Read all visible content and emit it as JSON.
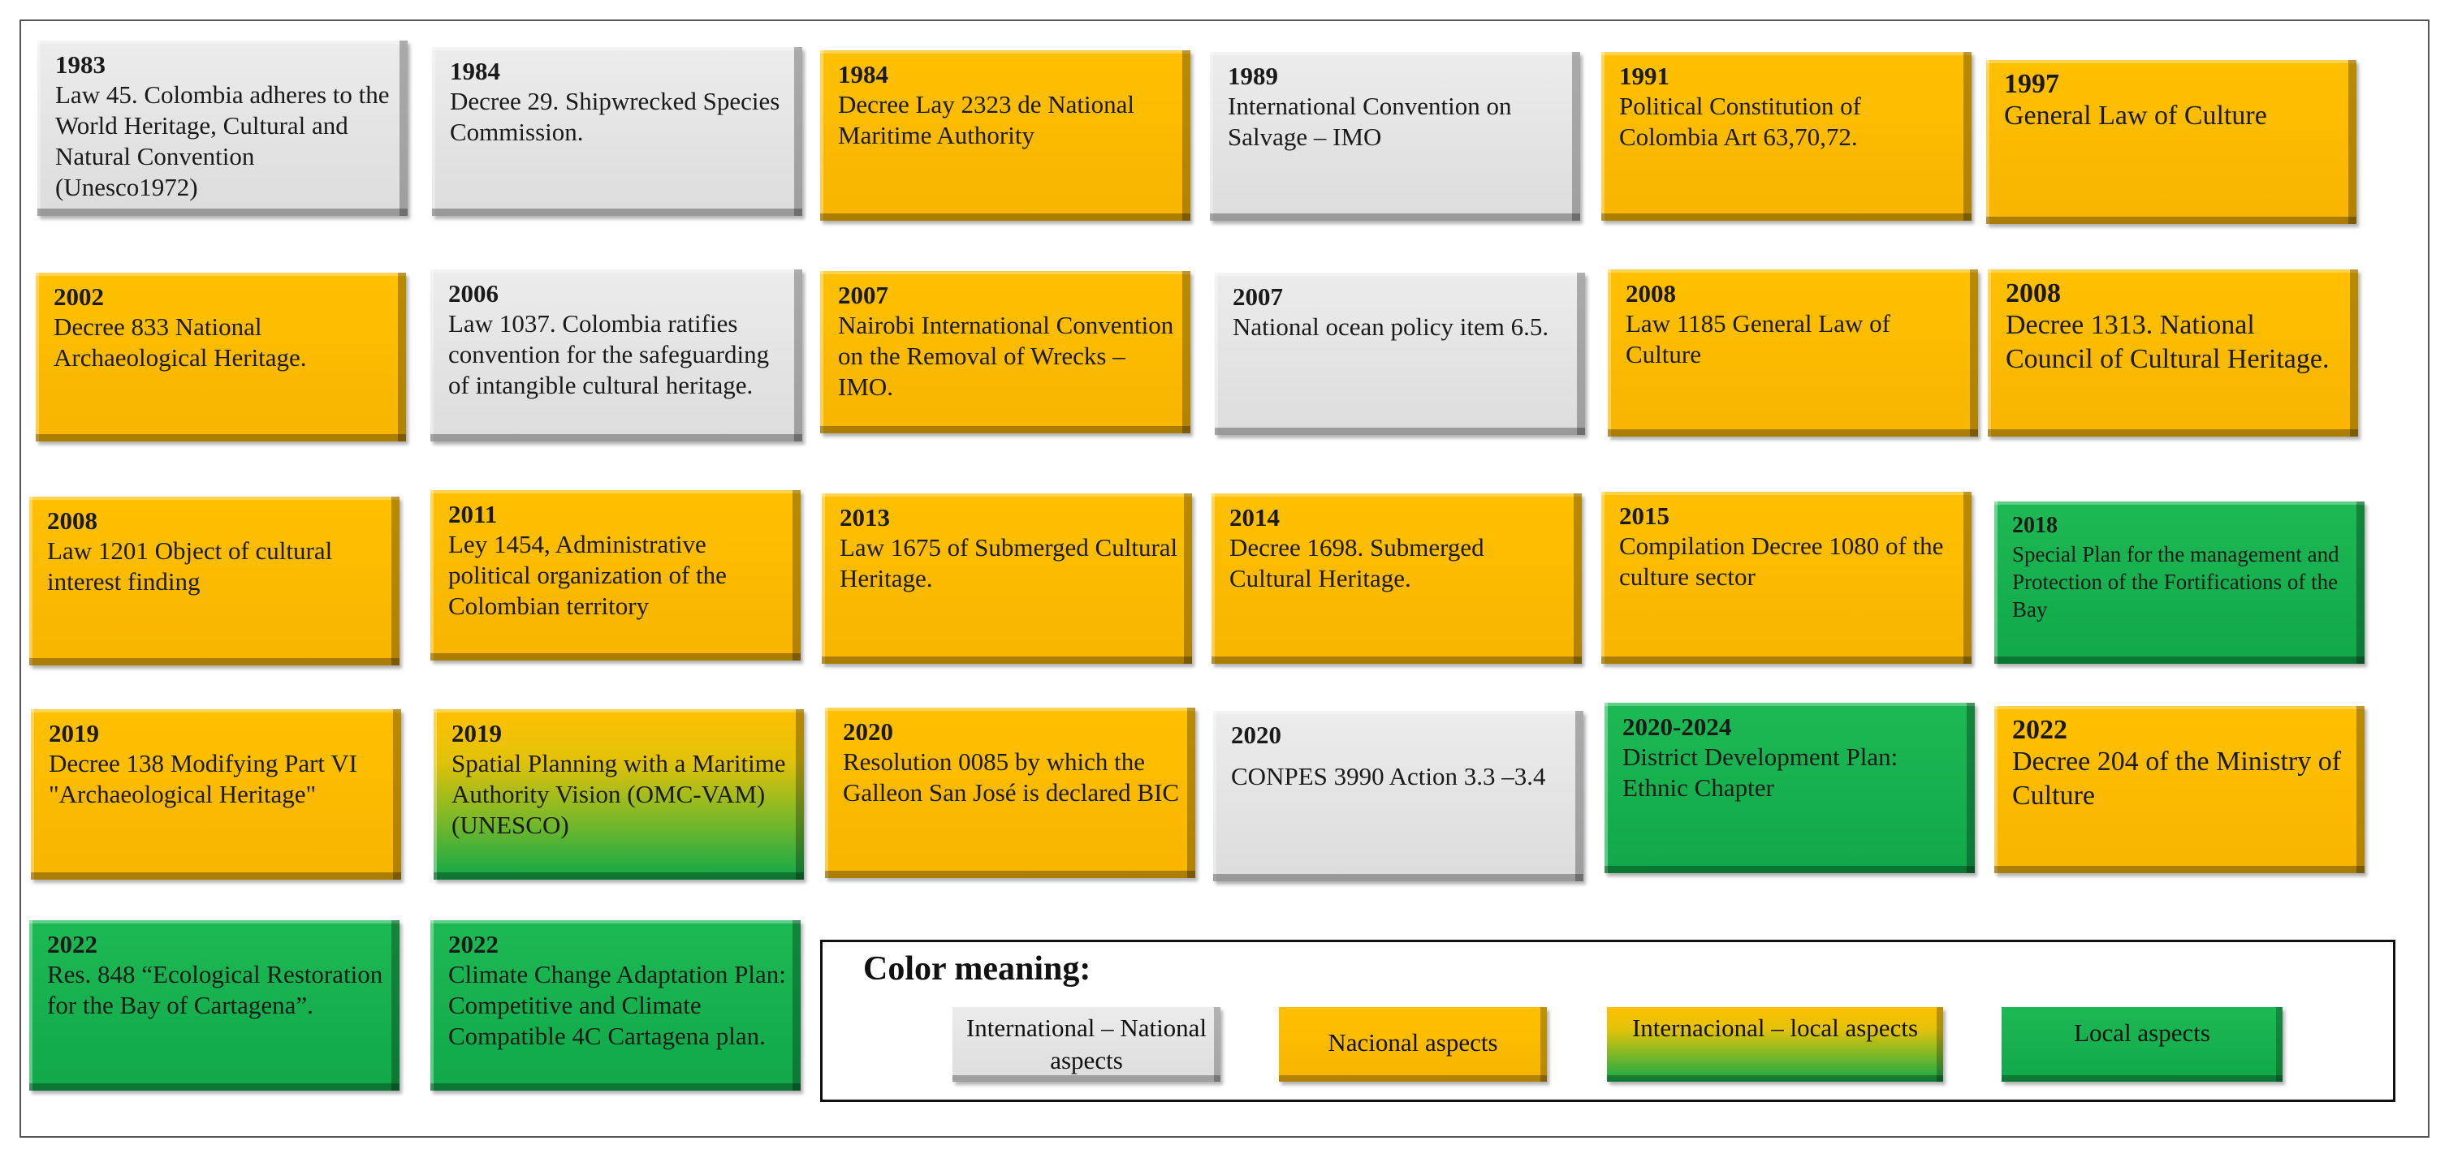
{
  "colors": {
    "international_national": "#e6e6e6",
    "national": "#ffc000",
    "international_local": "gradient #ffc000 to #10a849",
    "local": "#10a849"
  },
  "cards": [
    {
      "id": "c1983",
      "year": "1983",
      "text": "Law 45. Colombia adheres to the World Heritage, Cultural and Natural Convention (Unesco1972)",
      "color": "grey"
    },
    {
      "id": "c1984a",
      "year": "1984",
      "text": "Decree 29. Shipwrecked Species Commission.",
      "color": "grey"
    },
    {
      "id": "c1984b",
      "year": "1984",
      "text": "Decree Lay   2323 de National Maritime Authority",
      "color": "orange"
    },
    {
      "id": "c1989",
      "year": "1989",
      "text": "International Convention on Salvage – IMO",
      "color": "grey"
    },
    {
      "id": "c1991",
      "year": "1991",
      "text": "Political Constitution of Colombia Art 63,70,72.",
      "color": "orange"
    },
    {
      "id": "c1997",
      "year": "1997",
      "text": "General Law of Culture",
      "color": "orange"
    },
    {
      "id": "c2002",
      "year": "2002",
      "text": "Decree 833 National Archaeological Heritage.",
      "color": "orange"
    },
    {
      "id": "c2006",
      "year": "2006",
      "text": "Law 1037. Colombia ratifies convention for the safeguarding of intangible cultural heritage.",
      "color": "grey"
    },
    {
      "id": "c2007a",
      "year": "2007",
      "text": "Nairobi International Convention on the Removal of Wrecks – IMO.",
      "color": "orange"
    },
    {
      "id": "c2007b",
      "year": "2007",
      "text": "National ocean policy  item 6.5.",
      "color": "grey"
    },
    {
      "id": "c2008a",
      "year": "2008",
      "text": "Law 1185 General Law of Culture",
      "color": "orange"
    },
    {
      "id": "c2008b",
      "year": "2008",
      "text": "Decree 1313. National Council of Cultural Heritage.",
      "color": "orange"
    },
    {
      "id": "c2008c",
      "year": "2008",
      "text": "Law 1201  Object of cultural interest finding",
      "color": "orange"
    },
    {
      "id": "c2011",
      "year": "2011",
      "text": "Ley 1454, Administrative political organization of the Colombian territory",
      "color": "orange"
    },
    {
      "id": "c2013",
      "year": "2013",
      "text": "Law 1675 of Submerged Cultural Heritage.",
      "color": "orange"
    },
    {
      "id": "c2014",
      "year": "2014",
      "text": "Decree 1698. Submerged Cultural Heritage.",
      "color": "orange"
    },
    {
      "id": "c2015",
      "year": "2015",
      "text": "Compilation Decree 1080 of the culture sector",
      "color": "orange"
    },
    {
      "id": "c2018",
      "year": "2018",
      "text": "Special Plan for the management and Protection of the Fortifications  of the Bay",
      "color": "green"
    },
    {
      "id": "c2019a",
      "year": "2019",
      "text": "Decree 138 Modifying Part VI \"Archaeological Heritage\"",
      "color": "orange"
    },
    {
      "id": "c2019b",
      "year": "2019",
      "text": "Spatial Planning with a Maritime Authority Vision (OMC-VAM) (UNESCO)",
      "color": "mixed"
    },
    {
      "id": "c2020a",
      "year": "2020",
      "text": "Resolution 0085 by which the Galleon San José is declared BIC",
      "color": "orange"
    },
    {
      "id": "c2020b",
      "year": "2020",
      "text": " CONPES 3990 Action 3.3 –3.4",
      "color": "grey"
    },
    {
      "id": "c2020c",
      "year": "2020-2024",
      "text": "District Development Plan: Ethnic Chapter",
      "color": "green"
    },
    {
      "id": "c2022a",
      "year": "2022",
      "text": "Decree 204 of the Ministry of Culture",
      "color": "orange"
    },
    {
      "id": "c2022b",
      "year": "2022",
      "text": "Res. 848 “Ecological Restoration for the Bay of Cartagena”.",
      "color": "green"
    },
    {
      "id": "c2022c",
      "year": "2022",
      "text": "Climate Change Adaptation Plan: Competitive and Climate Compatible 4C Cartagena plan.",
      "color": "green"
    }
  ],
  "legend": {
    "title": "Color meaning:",
    "items": [
      {
        "label": "International – National aspects",
        "color": "grey"
      },
      {
        "label": "Nacional aspects",
        "color": "orange"
      },
      {
        "label": "Internacional – local aspects",
        "color": "mixed"
      },
      {
        "label": "Local aspects",
        "color": "green"
      }
    ]
  }
}
